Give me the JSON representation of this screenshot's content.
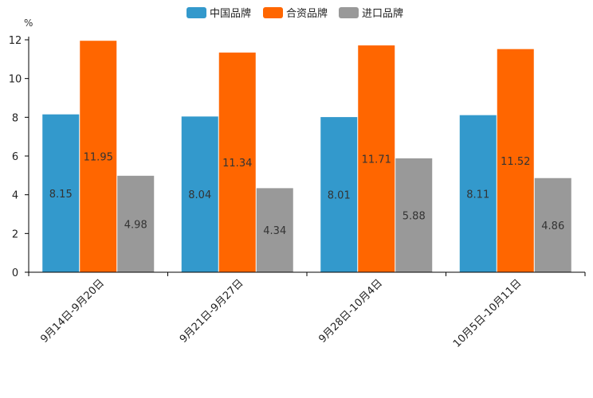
{
  "chart_data": {
    "type": "bar",
    "title": "",
    "xlabel": "",
    "ylabel": "%",
    "ylim": [
      0,
      12
    ],
    "yticks": [
      0,
      2,
      4,
      6,
      8,
      10,
      12
    ],
    "grid": false,
    "legend_position": "top-center",
    "categories": [
      "9月14日-9月20日",
      "9月21日-9月27日",
      "9月28日-10月4日",
      "10月5日-10月11日"
    ],
    "series": [
      {
        "name": "中国品牌",
        "color": "#3399cc",
        "values": [
          8.15,
          8.04,
          8.01,
          8.11
        ],
        "labels": [
          "8.15",
          "8.04",
          "8.01",
          "8.11"
        ]
      },
      {
        "name": "合资品牌",
        "color": "#ff6600",
        "values": [
          11.95,
          11.34,
          11.71,
          11.52
        ],
        "labels": [
          "11.95",
          "11.34",
          "11.71",
          "11.52"
        ]
      },
      {
        "name": "进口品牌",
        "color": "#999999",
        "values": [
          4.98,
          4.34,
          5.88,
          4.86
        ],
        "labels": [
          "4.98",
          "4.34",
          "5.88",
          "4.86"
        ]
      }
    ]
  }
}
